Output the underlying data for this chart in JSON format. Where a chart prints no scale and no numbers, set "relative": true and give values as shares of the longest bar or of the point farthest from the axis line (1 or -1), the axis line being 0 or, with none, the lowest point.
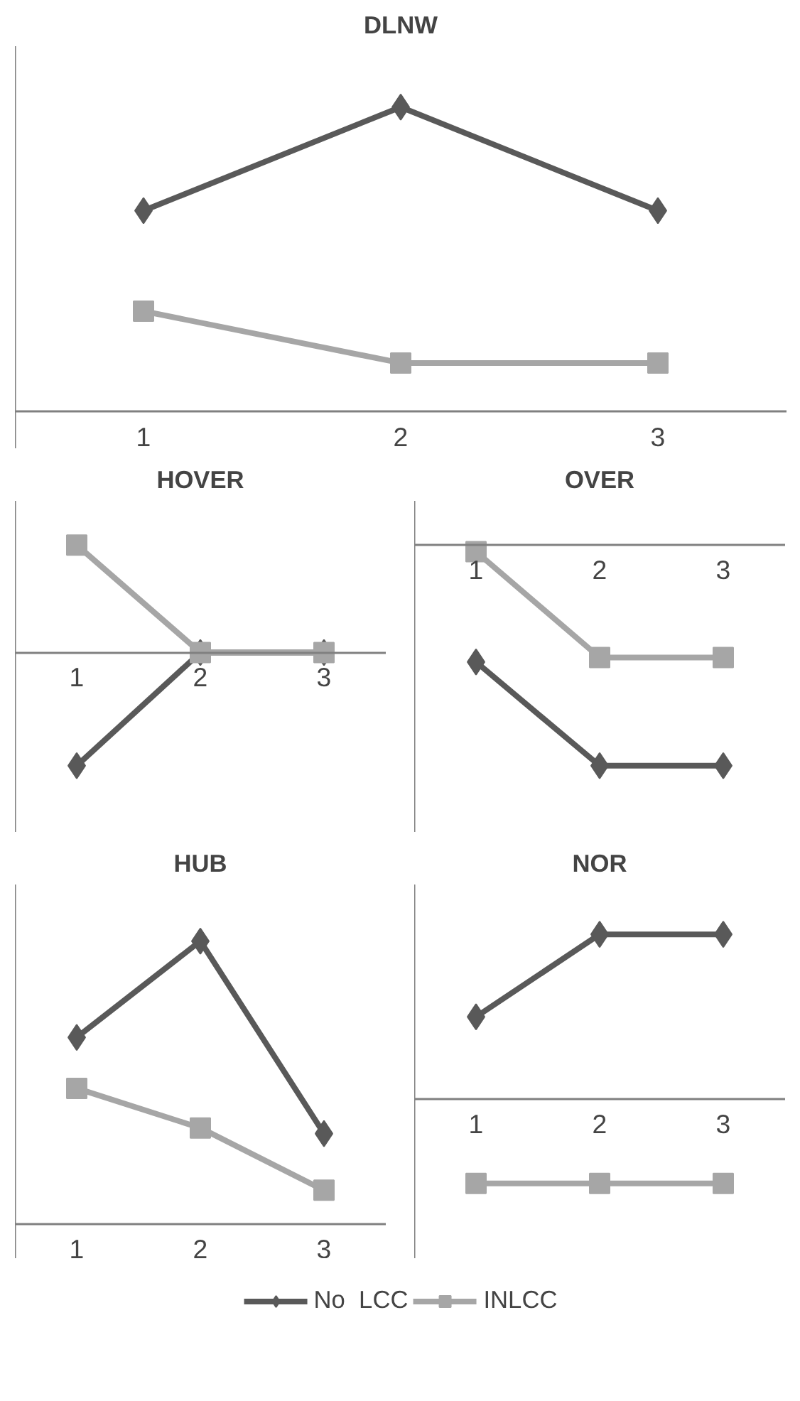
{
  "chart_data": [
    {
      "type": "line",
      "title": "DLNW",
      "relative": true,
      "categories": [
        "1",
        "2",
        "3"
      ],
      "series": [
        {
          "color": "#595959",
          "marker": "diamond",
          "values": [
            0.66,
            1,
            0.66
          ]
        },
        {
          "color": "#a6a6a6",
          "marker": "square",
          "values": [
            0.33,
            0.16,
            0.16
          ]
        }
      ]
    },
    {
      "type": "line",
      "title": "HOVER",
      "relative": true,
      "categories": [
        "1",
        "2",
        "3"
      ],
      "series": [
        {
          "color": "#595959",
          "marker": "diamond",
          "values": [
            -1,
            0,
            0
          ]
        },
        {
          "color": "#a6a6a6",
          "marker": "square",
          "values": [
            0.95,
            0,
            0
          ]
        }
      ]
    },
    {
      "type": "line",
      "title": "OVER",
      "relative": true,
      "categories": [
        "1",
        "2",
        "3"
      ],
      "series": [
        {
          "color": "#595959",
          "marker": "diamond",
          "values": [
            -0.53,
            -1,
            -1
          ]
        },
        {
          "color": "#a6a6a6",
          "marker": "square",
          "values": [
            -0.03,
            -0.51,
            -0.51
          ]
        }
      ]
    },
    {
      "type": "line",
      "title": "HUB",
      "relative": true,
      "categories": [
        "1",
        "2",
        "3"
      ],
      "series": [
        {
          "color": "#595959",
          "marker": "diamond",
          "values": [
            0.66,
            1,
            0.32
          ]
        },
        {
          "color": "#a6a6a6",
          "marker": "square",
          "values": [
            0.48,
            0.34,
            0.12
          ]
        }
      ]
    },
    {
      "type": "line",
      "title": "NOR",
      "relative": true,
      "categories": [
        "1",
        "2",
        "3"
      ],
      "legend": "bottom",
      "series": [
        {
          "name": "No  LCC",
          "color": "#595959",
          "marker": "diamond",
          "values": [
            0.5,
            1,
            1
          ]
        },
        {
          "name": "INLCC",
          "color": "#a6a6a6",
          "marker": "square",
          "values": [
            -0.51,
            -0.51,
            -0.51
          ]
        }
      ]
    }
  ]
}
